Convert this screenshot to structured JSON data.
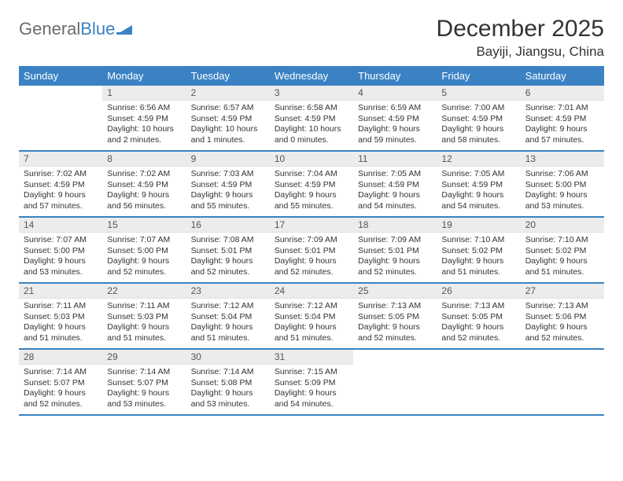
{
  "logo": {
    "text1": "General",
    "text2": "Blue"
  },
  "title": "December 2025",
  "location": "Bayiji, Jiangsu, China",
  "colors": {
    "header_bg": "#3b82c4",
    "daynum_bg": "#ececec",
    "text": "#333333",
    "logo_gray": "#6b6b6b"
  },
  "day_names": [
    "Sunday",
    "Monday",
    "Tuesday",
    "Wednesday",
    "Thursday",
    "Friday",
    "Saturday"
  ],
  "weeks": [
    [
      {
        "n": "",
        "s": "",
        "u": "",
        "d": ""
      },
      {
        "n": "1",
        "s": "Sunrise: 6:56 AM",
        "u": "Sunset: 4:59 PM",
        "d": "Daylight: 10 hours and 2 minutes."
      },
      {
        "n": "2",
        "s": "Sunrise: 6:57 AM",
        "u": "Sunset: 4:59 PM",
        "d": "Daylight: 10 hours and 1 minutes."
      },
      {
        "n": "3",
        "s": "Sunrise: 6:58 AM",
        "u": "Sunset: 4:59 PM",
        "d": "Daylight: 10 hours and 0 minutes."
      },
      {
        "n": "4",
        "s": "Sunrise: 6:59 AM",
        "u": "Sunset: 4:59 PM",
        "d": "Daylight: 9 hours and 59 minutes."
      },
      {
        "n": "5",
        "s": "Sunrise: 7:00 AM",
        "u": "Sunset: 4:59 PM",
        "d": "Daylight: 9 hours and 58 minutes."
      },
      {
        "n": "6",
        "s": "Sunrise: 7:01 AM",
        "u": "Sunset: 4:59 PM",
        "d": "Daylight: 9 hours and 57 minutes."
      }
    ],
    [
      {
        "n": "7",
        "s": "Sunrise: 7:02 AM",
        "u": "Sunset: 4:59 PM",
        "d": "Daylight: 9 hours and 57 minutes."
      },
      {
        "n": "8",
        "s": "Sunrise: 7:02 AM",
        "u": "Sunset: 4:59 PM",
        "d": "Daylight: 9 hours and 56 minutes."
      },
      {
        "n": "9",
        "s": "Sunrise: 7:03 AM",
        "u": "Sunset: 4:59 PM",
        "d": "Daylight: 9 hours and 55 minutes."
      },
      {
        "n": "10",
        "s": "Sunrise: 7:04 AM",
        "u": "Sunset: 4:59 PM",
        "d": "Daylight: 9 hours and 55 minutes."
      },
      {
        "n": "11",
        "s": "Sunrise: 7:05 AM",
        "u": "Sunset: 4:59 PM",
        "d": "Daylight: 9 hours and 54 minutes."
      },
      {
        "n": "12",
        "s": "Sunrise: 7:05 AM",
        "u": "Sunset: 4:59 PM",
        "d": "Daylight: 9 hours and 54 minutes."
      },
      {
        "n": "13",
        "s": "Sunrise: 7:06 AM",
        "u": "Sunset: 5:00 PM",
        "d": "Daylight: 9 hours and 53 minutes."
      }
    ],
    [
      {
        "n": "14",
        "s": "Sunrise: 7:07 AM",
        "u": "Sunset: 5:00 PM",
        "d": "Daylight: 9 hours and 53 minutes."
      },
      {
        "n": "15",
        "s": "Sunrise: 7:07 AM",
        "u": "Sunset: 5:00 PM",
        "d": "Daylight: 9 hours and 52 minutes."
      },
      {
        "n": "16",
        "s": "Sunrise: 7:08 AM",
        "u": "Sunset: 5:01 PM",
        "d": "Daylight: 9 hours and 52 minutes."
      },
      {
        "n": "17",
        "s": "Sunrise: 7:09 AM",
        "u": "Sunset: 5:01 PM",
        "d": "Daylight: 9 hours and 52 minutes."
      },
      {
        "n": "18",
        "s": "Sunrise: 7:09 AM",
        "u": "Sunset: 5:01 PM",
        "d": "Daylight: 9 hours and 52 minutes."
      },
      {
        "n": "19",
        "s": "Sunrise: 7:10 AM",
        "u": "Sunset: 5:02 PM",
        "d": "Daylight: 9 hours and 51 minutes."
      },
      {
        "n": "20",
        "s": "Sunrise: 7:10 AM",
        "u": "Sunset: 5:02 PM",
        "d": "Daylight: 9 hours and 51 minutes."
      }
    ],
    [
      {
        "n": "21",
        "s": "Sunrise: 7:11 AM",
        "u": "Sunset: 5:03 PM",
        "d": "Daylight: 9 hours and 51 minutes."
      },
      {
        "n": "22",
        "s": "Sunrise: 7:11 AM",
        "u": "Sunset: 5:03 PM",
        "d": "Daylight: 9 hours and 51 minutes."
      },
      {
        "n": "23",
        "s": "Sunrise: 7:12 AM",
        "u": "Sunset: 5:04 PM",
        "d": "Daylight: 9 hours and 51 minutes."
      },
      {
        "n": "24",
        "s": "Sunrise: 7:12 AM",
        "u": "Sunset: 5:04 PM",
        "d": "Daylight: 9 hours and 51 minutes."
      },
      {
        "n": "25",
        "s": "Sunrise: 7:13 AM",
        "u": "Sunset: 5:05 PM",
        "d": "Daylight: 9 hours and 52 minutes."
      },
      {
        "n": "26",
        "s": "Sunrise: 7:13 AM",
        "u": "Sunset: 5:05 PM",
        "d": "Daylight: 9 hours and 52 minutes."
      },
      {
        "n": "27",
        "s": "Sunrise: 7:13 AM",
        "u": "Sunset: 5:06 PM",
        "d": "Daylight: 9 hours and 52 minutes."
      }
    ],
    [
      {
        "n": "28",
        "s": "Sunrise: 7:14 AM",
        "u": "Sunset: 5:07 PM",
        "d": "Daylight: 9 hours and 52 minutes."
      },
      {
        "n": "29",
        "s": "Sunrise: 7:14 AM",
        "u": "Sunset: 5:07 PM",
        "d": "Daylight: 9 hours and 53 minutes."
      },
      {
        "n": "30",
        "s": "Sunrise: 7:14 AM",
        "u": "Sunset: 5:08 PM",
        "d": "Daylight: 9 hours and 53 minutes."
      },
      {
        "n": "31",
        "s": "Sunrise: 7:15 AM",
        "u": "Sunset: 5:09 PM",
        "d": "Daylight: 9 hours and 54 minutes."
      },
      {
        "n": "",
        "s": "",
        "u": "",
        "d": ""
      },
      {
        "n": "",
        "s": "",
        "u": "",
        "d": ""
      },
      {
        "n": "",
        "s": "",
        "u": "",
        "d": ""
      }
    ]
  ]
}
